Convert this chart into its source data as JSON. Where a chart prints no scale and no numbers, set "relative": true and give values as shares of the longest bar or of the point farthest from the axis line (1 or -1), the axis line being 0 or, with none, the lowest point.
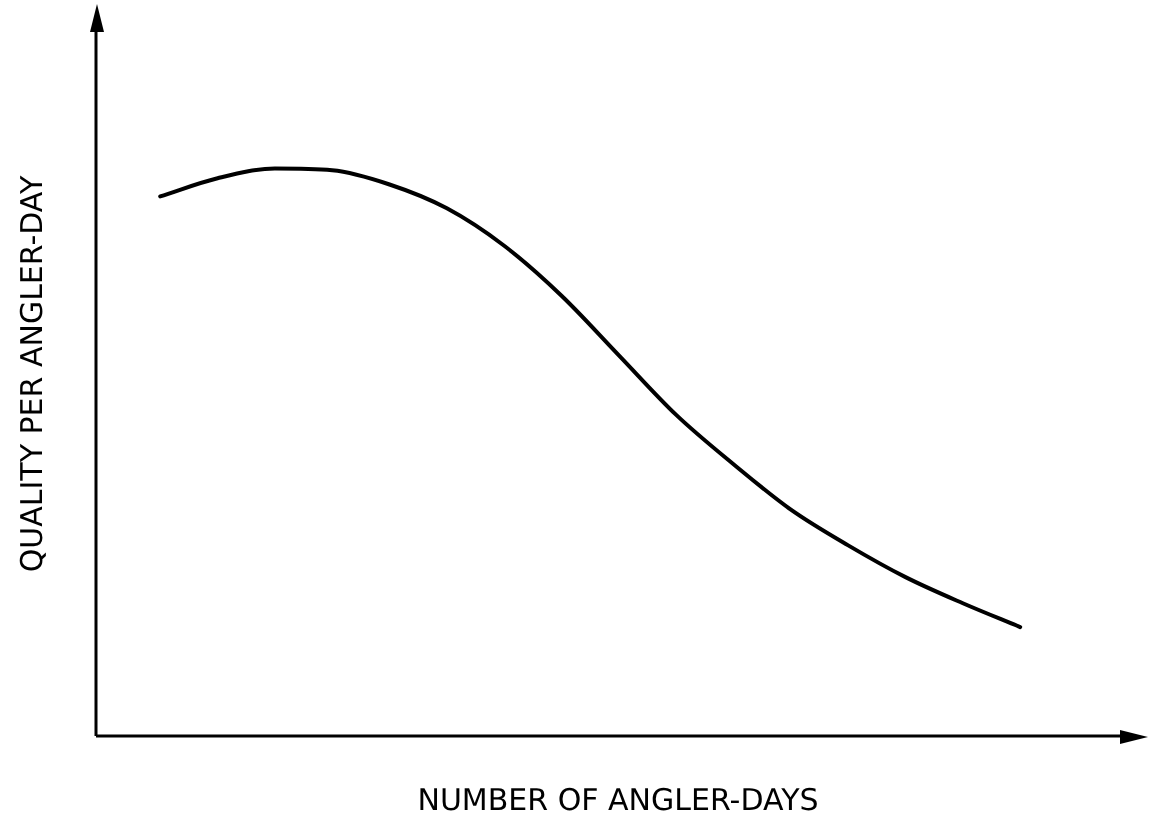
{
  "chart_data": {
    "type": "line",
    "relative": true,
    "xlabel": "NUMBER OF ANGLER-DAYS",
    "ylabel": "QUALITY PER ANGLER-DAY",
    "categories": [
      null,
      null,
      null,
      null,
      null,
      null,
      null,
      null,
      null,
      null,
      null,
      null,
      null,
      null,
      null,
      null
    ],
    "series": [
      {
        "color": "#000000",
        "values": [
          0.951,
          0.983,
          1,
          0.997,
          0.972,
          0.93,
          0.864,
          0.776,
          0.671,
          0.566,
          0.479,
          0.399,
          0.336,
          0.28,
          0.234,
          0.192
        ]
      }
    ],
    "grid": false,
    "legend": false,
    "marker": "none",
    "line_style": "solid"
  }
}
